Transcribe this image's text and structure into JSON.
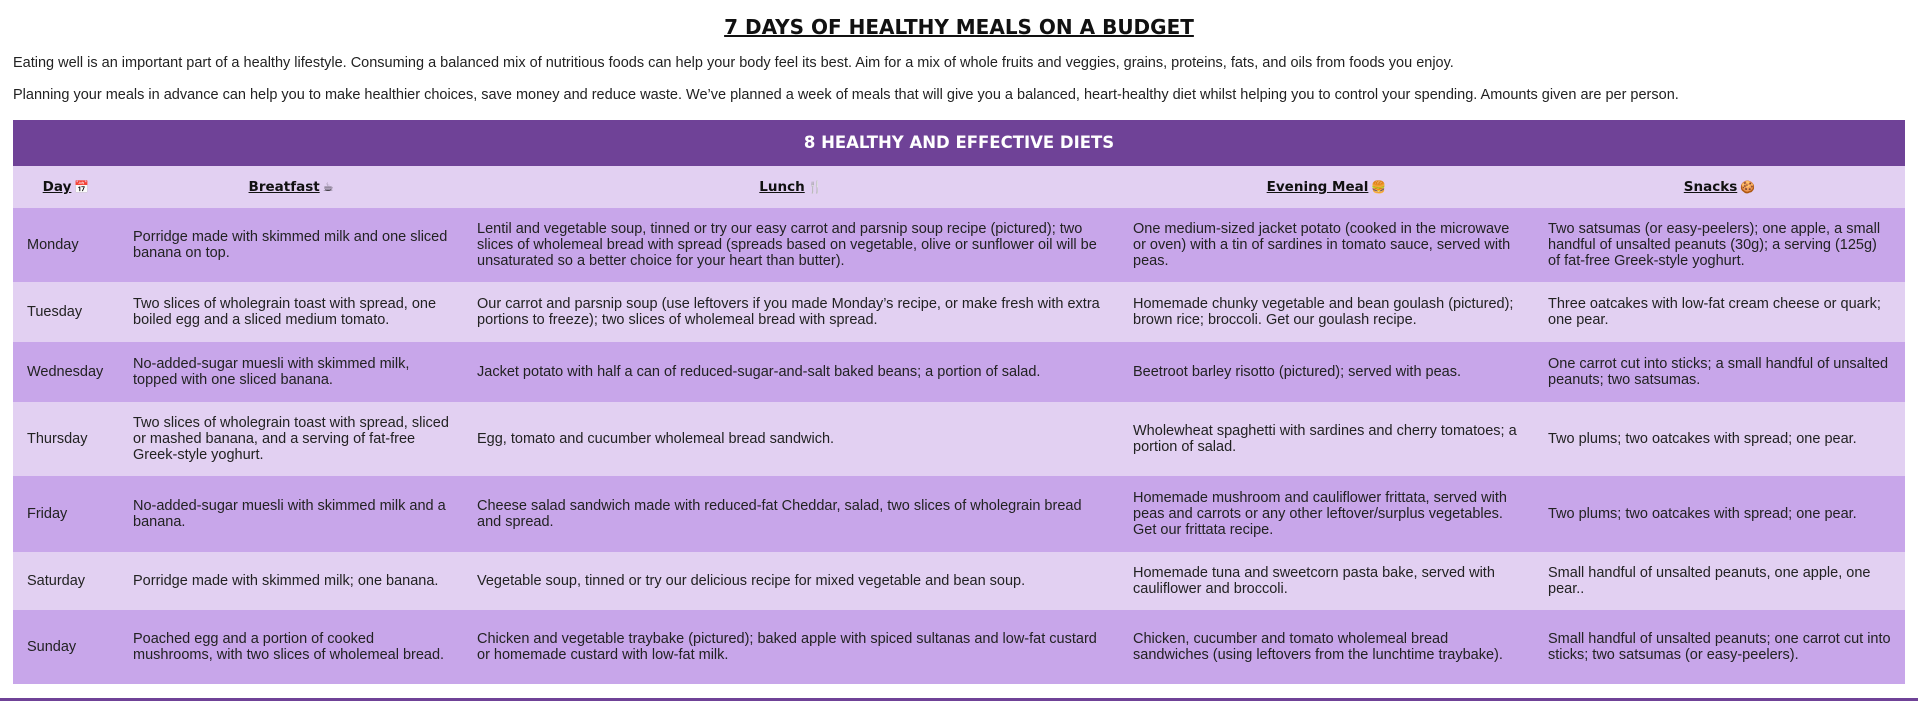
{
  "page": {
    "title": "7 DAYS OF HEALTHY MEALS ON A BUDGET",
    "intro_1": "Eating well is an important part of a healthy lifestyle. Consuming a balanced mix of nutritious foods can help your body feel its best. Aim for a mix of whole fruits and veggies, grains, proteins, fats, and oils from foods you enjoy.",
    "intro_2": "Planning your meals in advance can help you to make healthier choices, save money and reduce waste. We’ve planned a week of meals that will give you a balanced, heart-healthy diet whilst helping you to control your spending. Amounts given are per person."
  },
  "table": {
    "banner": "8 HEALTHY AND EFFECTIVE DIETS",
    "headers": [
      {
        "label": "Day",
        "icon": "calendar-icon",
        "glyph": "📅"
      },
      {
        "label": "Breatfast",
        "icon": "coffee-cup-icon",
        "glyph": "☕"
      },
      {
        "label": "Lunch",
        "icon": "fork-knife-icon",
        "glyph": "🍴"
      },
      {
        "label": "Evening Meal",
        "icon": "burger-icon",
        "glyph": "🍔"
      },
      {
        "label": "Snacks",
        "icon": "cookie-icon",
        "glyph": "🍪"
      }
    ],
    "rows": [
      {
        "day": "Monday",
        "breakfast": "Porridge made with skimmed milk and one sliced banana on top.",
        "lunch": "Lentil and vegetable soup, tinned or try our easy carrot and parsnip soup recipe (pictured); two slices of wholemeal bread with spread (spreads based on vegetable, olive or sunflower oil will be unsaturated so a better choice for your heart than butter).",
        "evening": "One medium-sized jacket potato (cooked in the microwave or oven) with a tin of sardines in tomato sauce, served with peas.",
        "snacks": "Two satsumas (or easy-peelers); one apple, a small handful of unsalted peanuts (30g); a serving (125g) of fat-free Greek-style yoghurt."
      },
      {
        "day": "Tuesday",
        "breakfast": "Two slices of wholegrain toast with spread, one boiled egg and a sliced medium tomato.",
        "lunch": "Our carrot and parsnip soup (use leftovers if you made Monday’s recipe, or make fresh with extra portions to freeze); two slices of wholemeal bread with spread.",
        "evening": "Homemade chunky vegetable and bean goulash (pictured); brown rice; broccoli. Get our goulash recipe.",
        "snacks": "Three oatcakes with low-fat cream cheese or quark; one pear."
      },
      {
        "day": "Wednesday",
        "breakfast": "No-added-sugar muesli with skimmed milk, topped with one sliced banana.",
        "lunch": "Jacket potato with half a can of reduced-sugar-and-salt baked beans; a portion of salad.",
        "evening": "Beetroot barley risotto (pictured); served with peas.",
        "snacks": "One carrot cut into sticks; a small handful of unsalted peanuts; two satsumas."
      },
      {
        "day": "Thursday",
        "breakfast": "Two slices of wholegrain toast with spread, sliced or mashed banana, and a serving of fat-free Greek-style yoghurt.",
        "lunch": "Egg, tomato and cucumber wholemeal bread sandwich.",
        "evening": "Wholewheat spaghetti with sardines and cherry tomatoes; a portion of salad.",
        "snacks": "Two plums; two oatcakes with spread; one pear."
      },
      {
        "day": "Friday",
        "breakfast": "No-added-sugar muesli with skimmed milk and a banana.",
        "lunch": "Cheese salad sandwich made with reduced-fat Cheddar, salad, two slices of wholegrain bread and spread.",
        "evening": "Homemade mushroom and cauliflower frittata, served with peas and carrots or any other leftover/surplus vegetables. Get our frittata recipe.",
        "snacks": "Two plums; two oatcakes with spread; one pear."
      },
      {
        "day": "Saturday",
        "breakfast": "Porridge made with skimmed milk; one banana.",
        "lunch": "Vegetable soup, tinned or try our delicious recipe for mixed vegetable and bean soup.",
        "evening": "Homemade tuna and sweetcorn pasta bake, served with cauliflower and broccoli.",
        "snacks": "Small handful of unsalted peanuts, one apple, one pear.."
      },
      {
        "day": "Sunday",
        "breakfast": "Poached egg and a portion of cooked mushrooms, with two slices of wholemeal bread.",
        "lunch": "Chicken and vegetable traybake (pictured); baked apple with spiced sultanas and low-fat custard or homemade custard with low-fat milk.",
        "evening": "Chicken, cucumber and tomato wholemeal bread sandwiches (using leftovers from the lunchtime traybake).",
        "snacks": "Small handful of unsalted peanuts; one carrot cut into sticks; two satsumas (or easy-peelers)."
      }
    ]
  },
  "colors": {
    "banner": "#6f4297",
    "row_dark": "#c8a6ea",
    "row_light": "#e2d0f2"
  }
}
